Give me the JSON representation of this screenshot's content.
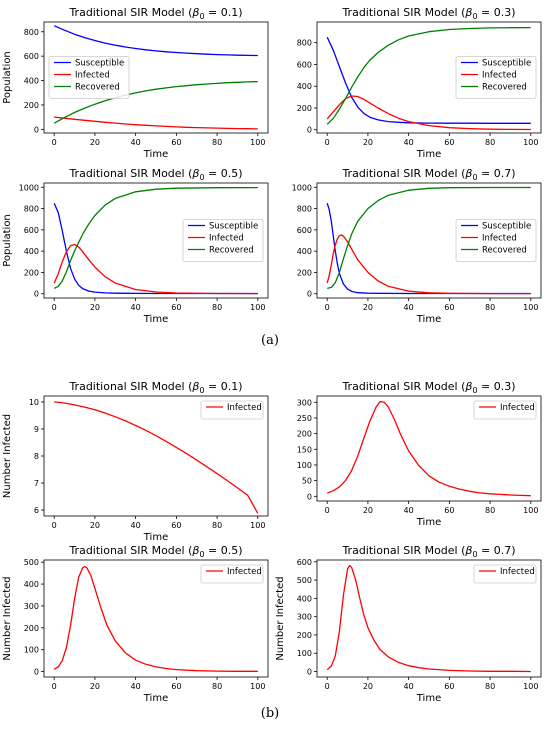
{
  "figure": {
    "panel_labels": [
      "(a)",
      "(b)"
    ]
  },
  "colors": {
    "susceptible": "#0000ff",
    "infected": "#ff0000",
    "recovered": "#008000",
    "axis": "#000000",
    "legend_border": "#cccccc"
  },
  "chart_data": [
    {
      "panel": "a",
      "type": "line",
      "title_prefix": "Traditional SIR Model (",
      "title_math": "β",
      "title_sub": "0",
      "title_value": " = 0.1)",
      "xlabel": "Time",
      "ylabel": "Population",
      "xlim": [
        -5,
        105
      ],
      "ylim": [
        -30,
        880
      ],
      "xticks": [
        0,
        20,
        40,
        60,
        80,
        100
      ],
      "yticks": [
        0,
        200,
        400,
        600,
        800
      ],
      "legend": "center-left",
      "series": [
        {
          "name": "Susceptible",
          "color": "#0000ff",
          "x": [
            0,
            5,
            10,
            15,
            20,
            25,
            30,
            35,
            40,
            45,
            50,
            55,
            60,
            65,
            70,
            75,
            80,
            85,
            90,
            95,
            100
          ],
          "y": [
            850,
            813,
            780,
            752,
            728,
            707,
            690,
            675,
            663,
            652,
            643,
            636,
            630,
            625,
            620,
            616,
            613,
            610,
            608,
            606,
            605
          ]
        },
        {
          "name": "Infected",
          "color": "#ff0000",
          "x": [
            0,
            5,
            10,
            15,
            20,
            25,
            30,
            35,
            40,
            45,
            50,
            55,
            60,
            65,
            70,
            75,
            80,
            85,
            90,
            95,
            100
          ],
          "y": [
            100,
            91,
            82,
            74,
            66,
            58,
            51,
            44,
            38,
            33,
            28,
            24,
            20,
            17,
            14,
            12,
            10,
            8,
            6,
            5,
            4
          ]
        },
        {
          "name": "Recovered",
          "color": "#008000",
          "x": [
            0,
            5,
            10,
            15,
            20,
            25,
            30,
            35,
            40,
            45,
            50,
            55,
            60,
            65,
            70,
            75,
            80,
            85,
            90,
            95,
            100
          ],
          "y": [
            50,
            96,
            138,
            174,
            206,
            235,
            259,
            281,
            299,
            315,
            329,
            340,
            350,
            358,
            366,
            372,
            377,
            382,
            386,
            389,
            391
          ]
        }
      ]
    },
    {
      "panel": "a",
      "type": "line",
      "title_prefix": "Traditional SIR Model (",
      "title_math": "β",
      "title_sub": "0",
      "title_value": " = 0.3)",
      "xlabel": "Time",
      "ylabel": "",
      "xlim": [
        -5,
        105
      ],
      "ylim": [
        -30,
        990
      ],
      "xticks": [
        0,
        20,
        40,
        60,
        80,
        100
      ],
      "yticks": [
        0,
        200,
        400,
        600,
        800
      ],
      "legend": "center-right",
      "series": [
        {
          "name": "Susceptible",
          "color": "#0000ff",
          "x": [
            0,
            3,
            6,
            9,
            12,
            15,
            18,
            21,
            25,
            30,
            35,
            40,
            50,
            60,
            70,
            80,
            90,
            100
          ],
          "y": [
            850,
            730,
            580,
            430,
            300,
            210,
            150,
            115,
            90,
            75,
            68,
            64,
            61,
            60,
            60,
            59,
            59,
            59
          ]
        },
        {
          "name": "Infected",
          "color": "#ff0000",
          "x": [
            0,
            3,
            6,
            9,
            12,
            15,
            18,
            21,
            25,
            30,
            35,
            40,
            50,
            60,
            70,
            80,
            90,
            100
          ],
          "y": [
            100,
            165,
            230,
            285,
            310,
            305,
            280,
            245,
            200,
            148,
            106,
            75,
            38,
            19,
            10,
            5,
            3,
            2
          ]
        },
        {
          "name": "Recovered",
          "color": "#008000",
          "x": [
            0,
            3,
            6,
            9,
            12,
            15,
            18,
            21,
            25,
            30,
            35,
            40,
            50,
            60,
            70,
            80,
            90,
            100
          ],
          "y": [
            50,
            105,
            190,
            285,
            390,
            485,
            570,
            640,
            710,
            777,
            826,
            861,
            901,
            921,
            930,
            936,
            938,
            939
          ]
        }
      ]
    },
    {
      "panel": "a",
      "type": "line",
      "title_prefix": "Traditional SIR Model (",
      "title_math": "β",
      "title_sub": "0",
      "title_value": " = 0.5)",
      "xlabel": "Time",
      "ylabel": "Population",
      "xlim": [
        -5,
        105
      ],
      "ylim": [
        -40,
        1040
      ],
      "xticks": [
        0,
        20,
        40,
        60,
        80,
        100
      ],
      "yticks": [
        0,
        200,
        400,
        600,
        800,
        1000
      ],
      "legend": "center-right",
      "series": [
        {
          "name": "Susceptible",
          "color": "#0000ff",
          "x": [
            0,
            2,
            4,
            6,
            8,
            10,
            12,
            14,
            17,
            20,
            25,
            30,
            40,
            50,
            60,
            80,
            100
          ],
          "y": [
            850,
            760,
            590,
            400,
            240,
            140,
            80,
            48,
            25,
            15,
            8,
            5,
            3,
            2,
            2,
            2,
            2
          ]
        },
        {
          "name": "Infected",
          "color": "#ff0000",
          "x": [
            0,
            2,
            4,
            6,
            8,
            10,
            12,
            14,
            17,
            20,
            25,
            30,
            40,
            50,
            60,
            80,
            100
          ],
          "y": [
            100,
            190,
            300,
            395,
            450,
            462,
            440,
            395,
            320,
            250,
            160,
            100,
            40,
            16,
            7,
            2,
            1
          ]
        },
        {
          "name": "Recovered",
          "color": "#008000",
          "x": [
            0,
            2,
            4,
            6,
            8,
            10,
            12,
            14,
            17,
            20,
            25,
            30,
            40,
            50,
            60,
            80,
            100
          ],
          "y": [
            50,
            70,
            120,
            205,
            310,
            400,
            480,
            560,
            655,
            735,
            832,
            895,
            957,
            982,
            991,
            996,
            997
          ]
        }
      ]
    },
    {
      "panel": "a",
      "type": "line",
      "title_prefix": "Traditional SIR Model (",
      "title_math": "β",
      "title_sub": "0",
      "title_value": " = 0.7)",
      "xlabel": "Time",
      "ylabel": "",
      "xlim": [
        -5,
        105
      ],
      "ylim": [
        -40,
        1040
      ],
      "xticks": [
        0,
        20,
        40,
        60,
        80,
        100
      ],
      "yticks": [
        0,
        200,
        400,
        600,
        800,
        1000
      ],
      "legend": "center-right",
      "series": [
        {
          "name": "Susceptible",
          "color": "#0000ff",
          "x": [
            0,
            1,
            2,
            3,
            4,
            5,
            6,
            8,
            10,
            12,
            15,
            20,
            30,
            40,
            60,
            100
          ],
          "y": [
            850,
            790,
            680,
            540,
            400,
            280,
            190,
            90,
            45,
            22,
            10,
            5,
            3,
            2,
            2,
            2
          ]
        },
        {
          "name": "Infected",
          "color": "#ff0000",
          "x": [
            0,
            1,
            2,
            3,
            4,
            5,
            6,
            7,
            8,
            10,
            12,
            15,
            20,
            25,
            30,
            40,
            50,
            60,
            80,
            100
          ],
          "y": [
            100,
            170,
            270,
            380,
            460,
            515,
            545,
            552,
            540,
            490,
            420,
            320,
            200,
            120,
            70,
            25,
            9,
            4,
            1,
            1
          ]
        },
        {
          "name": "Recovered",
          "color": "#008000",
          "x": [
            0,
            2,
            4,
            6,
            8,
            10,
            12,
            15,
            20,
            25,
            30,
            40,
            50,
            60,
            80,
            100
          ],
          "y": [
            50,
            60,
            105,
            200,
            330,
            450,
            560,
            680,
            800,
            875,
            925,
            972,
            990,
            996,
            998,
            998
          ]
        }
      ]
    },
    {
      "panel": "b",
      "type": "line",
      "title_prefix": "Traditional SIR Model (",
      "title_math": "β",
      "title_sub": "0",
      "title_value": " = 0.1)",
      "xlabel": "Time",
      "ylabel": "Number Infected",
      "xlim": [
        -5,
        105
      ],
      "ylim": [
        5.78,
        10.22
      ],
      "xticks": [
        0,
        20,
        40,
        60,
        80,
        100
      ],
      "yticks": [
        6,
        7,
        8,
        9,
        10
      ],
      "legend": "top-right",
      "series": [
        {
          "name": "Infected",
          "color": "#ff0000",
          "x": [
            0,
            5,
            10,
            15,
            20,
            25,
            30,
            35,
            40,
            45,
            50,
            55,
            60,
            65,
            70,
            75,
            80,
            85,
            90,
            95,
            100
          ],
          "y": [
            10.0,
            9.96,
            9.89,
            9.81,
            9.71,
            9.59,
            9.45,
            9.3,
            9.13,
            8.95,
            8.75,
            8.54,
            8.32,
            8.09,
            7.85,
            7.6,
            7.35,
            7.09,
            6.82,
            6.55,
            5.88
          ]
        }
      ]
    },
    {
      "panel": "b",
      "type": "line",
      "title_prefix": "Traditional SIR Model (",
      "title_math": "β",
      "title_sub": "0",
      "title_value": " = 0.3)",
      "xlabel": "Time",
      "ylabel": "",
      "xlim": [
        -5,
        105
      ],
      "ylim": [
        -15,
        320
      ],
      "xticks": [
        0,
        20,
        40,
        60,
        80,
        100
      ],
      "yticks": [
        0,
        50,
        100,
        150,
        200,
        250,
        300
      ],
      "legend": "top-right",
      "series": [
        {
          "name": "Infected",
          "color": "#ff0000",
          "x": [
            0,
            3,
            6,
            9,
            12,
            15,
            18,
            21,
            24,
            26,
            28,
            30,
            33,
            36,
            40,
            45,
            50,
            55,
            60,
            65,
            70,
            75,
            80,
            85,
            90,
            95,
            100
          ],
          "y": [
            10,
            18,
            30,
            50,
            82,
            128,
            185,
            240,
            285,
            302,
            300,
            285,
            245,
            198,
            145,
            98,
            65,
            45,
            32,
            23,
            16,
            11,
            8,
            6,
            4,
            3,
            2
          ]
        }
      ]
    },
    {
      "panel": "b",
      "type": "line",
      "title_prefix": "Traditional SIR Model (",
      "title_math": "β",
      "title_sub": "0",
      "title_value": " = 0.5)",
      "xlabel": "Time",
      "ylabel": "Number Infected",
      "xlim": [
        -5,
        105
      ],
      "ylim": [
        -25,
        510
      ],
      "xticks": [
        0,
        20,
        40,
        60,
        80,
        100
      ],
      "yticks": [
        0,
        100,
        200,
        300,
        400,
        500
      ],
      "legend": "top-right",
      "series": [
        {
          "name": "Infected",
          "color": "#ff0000",
          "x": [
            0,
            2,
            4,
            6,
            8,
            10,
            12,
            14,
            15,
            16,
            18,
            20,
            23,
            26,
            30,
            35,
            40,
            45,
            50,
            55,
            60,
            70,
            80,
            90,
            100
          ],
          "y": [
            10,
            22,
            50,
            110,
            210,
            330,
            430,
            475,
            480,
            475,
            440,
            380,
            290,
            210,
            140,
            85,
            52,
            33,
            21,
            14,
            9,
            4,
            2,
            1,
            1
          ]
        }
      ]
    },
    {
      "panel": "b",
      "type": "line",
      "title_prefix": "Traditional SIR Model (",
      "title_math": "β",
      "title_sub": "0",
      "title_value": " = 0.7)",
      "xlabel": "Time",
      "ylabel": "Number Infected",
      "xlim": [
        -5,
        105
      ],
      "ylim": [
        -30,
        610
      ],
      "xticks": [
        0,
        20,
        40,
        60,
        80,
        100
      ],
      "yticks": [
        0,
        100,
        200,
        300,
        400,
        500,
        600
      ],
      "legend": "top-right",
      "series": [
        {
          "name": "Infected",
          "color": "#ff0000",
          "x": [
            0,
            2,
            4,
            6,
            8,
            10,
            11,
            12,
            14,
            16,
            18,
            20,
            23,
            26,
            30,
            35,
            40,
            45,
            50,
            60,
            70,
            80,
            90,
            100
          ],
          "y": [
            10,
            30,
            85,
            220,
            420,
            560,
            580,
            570,
            500,
            400,
            310,
            240,
            170,
            120,
            80,
            50,
            32,
            21,
            14,
            6,
            3,
            1,
            1,
            0
          ]
        }
      ]
    }
  ]
}
